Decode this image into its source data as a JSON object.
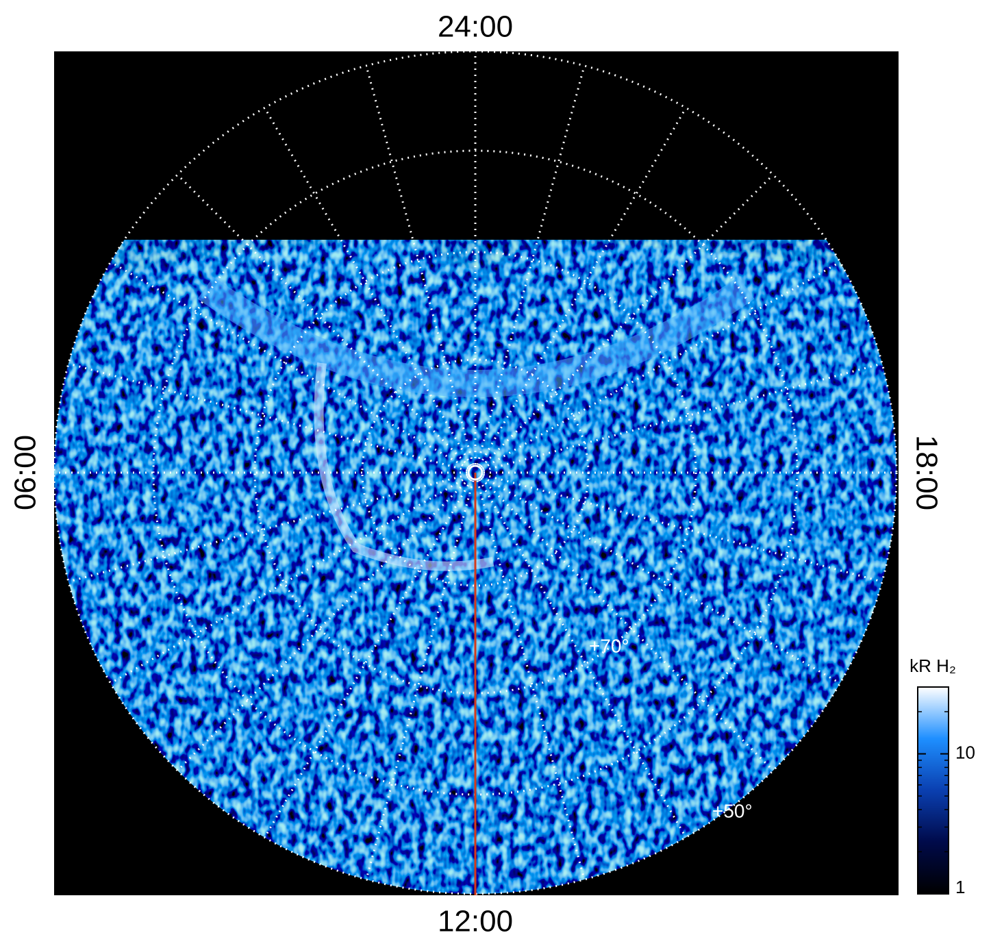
{
  "chart_data": {
    "type": "polar-image",
    "angular_labels": {
      "top": "24:00",
      "bottom": "12:00",
      "left": "06:00",
      "right": "18:00"
    },
    "radial_labels": [
      "+70°",
      "+50°"
    ],
    "colorbar": {
      "label": "kR H₂",
      "scale": "log",
      "lim": [
        1,
        30
      ],
      "ticks": [
        1,
        10
      ],
      "minor_ticks": [
        2,
        3,
        4,
        5,
        6,
        7,
        8,
        9,
        20,
        30
      ],
      "colors": [
        "#000000",
        "#000a4a",
        "#0a3fb0",
        "#1e8fff",
        "#ffffff"
      ]
    },
    "grid": true,
    "meridian_color": "#d43a1a"
  }
}
